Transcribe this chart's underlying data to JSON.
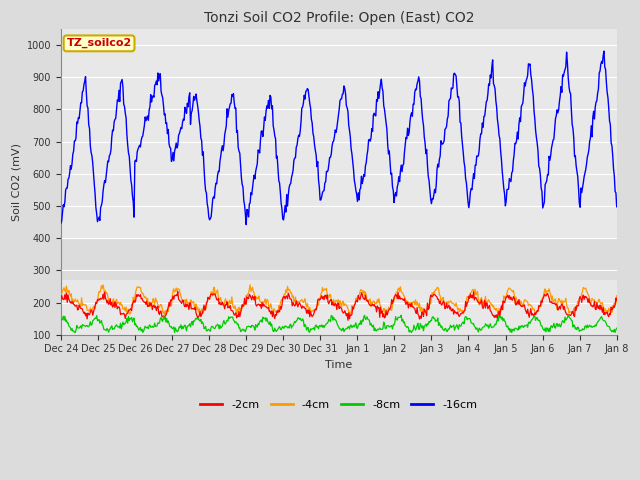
{
  "title": "Tonzi Soil CO2 Profile: Open (East) CO2",
  "ylabel": "Soil CO2 (mV)",
  "xlabel": "Time",
  "ylim": [
    100,
    1050
  ],
  "yticks": [
    100,
    200,
    300,
    400,
    500,
    600,
    700,
    800,
    900,
    1000
  ],
  "background_color": "#dcdcdc",
  "plot_bg_color": "#dcdcdc",
  "upper_band_color": "#c8c8c8",
  "lower_band_color": "#c8c8c8",
  "title_color": "#333333",
  "label_box_text": "TZ_soilco2",
  "label_box_bg": "#ffffcc",
  "label_box_edge": "#ccaa00",
  "label_box_text_color": "#cc0000",
  "legend_entries": [
    "-2cm",
    "-4cm",
    "-8cm",
    "-16cm"
  ],
  "legend_colors": [
    "#ff0000",
    "#ff9900",
    "#00cc00",
    "#0000ff"
  ],
  "line_colors": {
    "2cm": "#ff0000",
    "4cm": "#ff9900",
    "8cm": "#00cc00",
    "16cm": "#0000ff"
  },
  "x_tick_labels": [
    "Dec 24",
    "Dec 25",
    "Dec 26",
    "Dec 27",
    "Dec 28",
    "Dec 29",
    "Dec 30",
    "Dec 31",
    "Jan 1",
    "Jan 2",
    "Jan 3",
    "Jan 4",
    "Jan 5",
    "Jan 6",
    "Jan 7",
    "Jan 8"
  ],
  "n_points": 700,
  "seed": 42
}
